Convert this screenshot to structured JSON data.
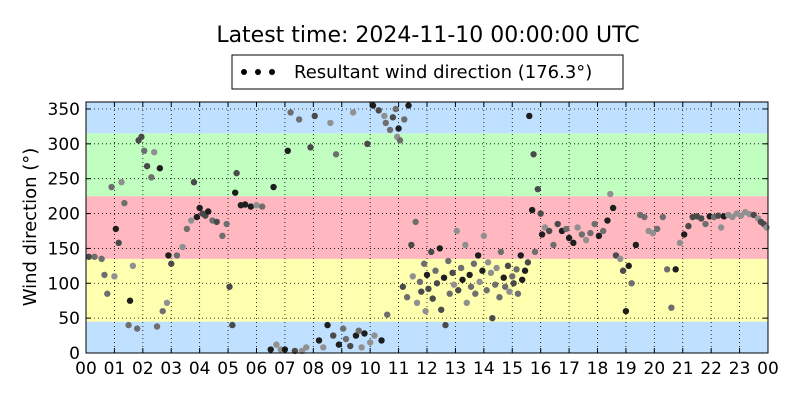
{
  "chart_data": {
    "type": "scatter",
    "title": "Latest time: 2024-11-10 00:00:00 UTC",
    "xlabel": "",
    "ylabel": "Wind direction (°)",
    "x_unit": "hour",
    "xlim": [
      0,
      24
    ],
    "ylim": [
      0,
      360
    ],
    "x_ticks": [
      0,
      1,
      2,
      3,
      4,
      5,
      6,
      7,
      8,
      9,
      10,
      11,
      12,
      13,
      14,
      15,
      16,
      17,
      18,
      19,
      20,
      21,
      22,
      23,
      24
    ],
    "x_tick_labels": [
      "00",
      "01",
      "02",
      "03",
      "04",
      "05",
      "06",
      "07",
      "08",
      "09",
      "10",
      "11",
      "12",
      "13",
      "14",
      "15",
      "16",
      "17",
      "18",
      "19",
      "20",
      "21",
      "22",
      "23",
      "00"
    ],
    "y_ticks": [
      0,
      50,
      100,
      150,
      200,
      250,
      300,
      350
    ],
    "grid": true,
    "grid_style": "dotted",
    "legend": {
      "placement": "top-center",
      "entries": [
        {
          "label": "Resultant wind direction (176.3°)",
          "marker": "dots",
          "color": "#000000"
        }
      ]
    },
    "bands": [
      {
        "from": 0,
        "to": 45,
        "color": "#c0e0ff"
      },
      {
        "from": 45,
        "to": 135,
        "color": "#ffffb0"
      },
      {
        "from": 135,
        "to": 225,
        "color": "#ffb8c0"
      },
      {
        "from": 225,
        "to": 315,
        "color": "#c0ffc0"
      },
      {
        "from": 315,
        "to": 360,
        "color": "#c0e0ff"
      }
    ],
    "point_colors": [
      "#909090",
      "#6e6e6e",
      "#4a4a4a",
      "#1e1e1e"
    ],
    "series": [
      {
        "points": [
          {
            "x": 0.1,
            "y": 138
          },
          {
            "x": 0.3,
            "y": 138
          },
          {
            "x": 0.55,
            "y": 135
          },
          {
            "x": 0.65,
            "y": 112
          },
          {
            "x": 0.75,
            "y": 85
          },
          {
            "x": 0.9,
            "y": 238
          },
          {
            "x": 1.0,
            "y": 110
          },
          {
            "x": 1.05,
            "y": 178
          },
          {
            "x": 1.15,
            "y": 158
          },
          {
            "x": 1.25,
            "y": 245
          },
          {
            "x": 1.35,
            "y": 215
          },
          {
            "x": 1.5,
            "y": 40
          },
          {
            "x": 1.55,
            "y": 75
          },
          {
            "x": 1.65,
            "y": 125
          },
          {
            "x": 1.8,
            "y": 35
          },
          {
            "x": 1.85,
            "y": 305
          },
          {
            "x": 1.95,
            "y": 310
          },
          {
            "x": 2.05,
            "y": 290
          },
          {
            "x": 2.15,
            "y": 268
          },
          {
            "x": 2.3,
            "y": 252
          },
          {
            "x": 2.4,
            "y": 288
          },
          {
            "x": 2.5,
            "y": 38
          },
          {
            "x": 2.6,
            "y": 265
          },
          {
            "x": 2.7,
            "y": 60
          },
          {
            "x": 2.85,
            "y": 72
          },
          {
            "x": 2.9,
            "y": 140
          },
          {
            "x": 3.0,
            "y": 128
          },
          {
            "x": 3.2,
            "y": 140
          },
          {
            "x": 3.4,
            "y": 152
          },
          {
            "x": 3.55,
            "y": 178
          },
          {
            "x": 3.7,
            "y": 190
          },
          {
            "x": 3.8,
            "y": 245
          },
          {
            "x": 3.9,
            "y": 195
          },
          {
            "x": 4.0,
            "y": 208
          },
          {
            "x": 4.1,
            "y": 200
          },
          {
            "x": 4.2,
            "y": 197
          },
          {
            "x": 4.3,
            "y": 203
          },
          {
            "x": 4.45,
            "y": 190
          },
          {
            "x": 4.6,
            "y": 188
          },
          {
            "x": 4.8,
            "y": 168
          },
          {
            "x": 4.95,
            "y": 185
          },
          {
            "x": 5.05,
            "y": 95
          },
          {
            "x": 5.15,
            "y": 40
          },
          {
            "x": 5.25,
            "y": 230
          },
          {
            "x": 5.3,
            "y": 258
          },
          {
            "x": 5.45,
            "y": 212
          },
          {
            "x": 5.6,
            "y": 213
          },
          {
            "x": 5.8,
            "y": 210
          },
          {
            "x": 6.0,
            "y": 212
          },
          {
            "x": 6.2,
            "y": 210
          },
          {
            "x": 6.5,
            "y": 5
          },
          {
            "x": 6.6,
            "y": 238
          },
          {
            "x": 6.7,
            "y": 12
          },
          {
            "x": 6.85,
            "y": 5
          },
          {
            "x": 7.0,
            "y": 5
          },
          {
            "x": 7.1,
            "y": 290
          },
          {
            "x": 7.2,
            "y": 345
          },
          {
            "x": 7.35,
            "y": 3
          },
          {
            "x": 7.5,
            "y": 335
          },
          {
            "x": 7.6,
            "y": 3
          },
          {
            "x": 7.75,
            "y": 8
          },
          {
            "x": 7.9,
            "y": 295
          },
          {
            "x": 8.05,
            "y": 340
          },
          {
            "x": 8.2,
            "y": 18
          },
          {
            "x": 8.35,
            "y": 8
          },
          {
            "x": 8.5,
            "y": 40
          },
          {
            "x": 8.6,
            "y": 330
          },
          {
            "x": 8.7,
            "y": 25
          },
          {
            "x": 8.8,
            "y": 285
          },
          {
            "x": 8.9,
            "y": 12
          },
          {
            "x": 9.05,
            "y": 35
          },
          {
            "x": 9.15,
            "y": 20
          },
          {
            "x": 9.3,
            "y": 10
          },
          {
            "x": 9.4,
            "y": 345
          },
          {
            "x": 9.5,
            "y": 25
          },
          {
            "x": 9.6,
            "y": 32
          },
          {
            "x": 9.7,
            "y": 8
          },
          {
            "x": 9.8,
            "y": 28
          },
          {
            "x": 9.9,
            "y": 300
          },
          {
            "x": 10.0,
            "y": 15
          },
          {
            "x": 10.1,
            "y": 355
          },
          {
            "x": 10.15,
            "y": 25
          },
          {
            "x": 10.3,
            "y": 348
          },
          {
            "x": 10.4,
            "y": 18
          },
          {
            "x": 10.5,
            "y": 340
          },
          {
            "x": 10.55,
            "y": 330
          },
          {
            "x": 10.6,
            "y": 55
          },
          {
            "x": 10.7,
            "y": 320
          },
          {
            "x": 10.8,
            "y": 338
          },
          {
            "x": 10.9,
            "y": 350
          },
          {
            "x": 10.95,
            "y": 310
          },
          {
            "x": 11.0,
            "y": 322
          },
          {
            "x": 11.05,
            "y": 305
          },
          {
            "x": 11.15,
            "y": 95
          },
          {
            "x": 11.2,
            "y": 335
          },
          {
            "x": 11.3,
            "y": 80
          },
          {
            "x": 11.35,
            "y": 355
          },
          {
            "x": 11.45,
            "y": 155
          },
          {
            "x": 11.5,
            "y": 110
          },
          {
            "x": 11.6,
            "y": 188
          },
          {
            "x": 11.65,
            "y": 72
          },
          {
            "x": 11.75,
            "y": 102
          },
          {
            "x": 11.8,
            "y": 88
          },
          {
            "x": 11.9,
            "y": 128
          },
          {
            "x": 11.95,
            "y": 60
          },
          {
            "x": 12.0,
            "y": 112
          },
          {
            "x": 12.05,
            "y": 92
          },
          {
            "x": 12.15,
            "y": 145
          },
          {
            "x": 12.2,
            "y": 78
          },
          {
            "x": 12.3,
            "y": 118
          },
          {
            "x": 12.35,
            "y": 100
          },
          {
            "x": 12.45,
            "y": 150
          },
          {
            "x": 12.5,
            "y": 62
          },
          {
            "x": 12.6,
            "y": 108
          },
          {
            "x": 12.65,
            "y": 40
          },
          {
            "x": 12.75,
            "y": 132
          },
          {
            "x": 12.8,
            "y": 85
          },
          {
            "x": 12.9,
            "y": 115
          },
          {
            "x": 12.95,
            "y": 98
          },
          {
            "x": 13.05,
            "y": 175
          },
          {
            "x": 13.1,
            "y": 90
          },
          {
            "x": 13.2,
            "y": 122
          },
          {
            "x": 13.25,
            "y": 105
          },
          {
            "x": 13.35,
            "y": 155
          },
          {
            "x": 13.4,
            "y": 72
          },
          {
            "x": 13.5,
            "y": 112
          },
          {
            "x": 13.55,
            "y": 95
          },
          {
            "x": 13.65,
            "y": 128
          },
          {
            "x": 13.7,
            "y": 85
          },
          {
            "x": 13.8,
            "y": 140
          },
          {
            "x": 13.85,
            "y": 102
          },
          {
            "x": 13.95,
            "y": 118
          },
          {
            "x": 14.0,
            "y": 168
          },
          {
            "x": 14.1,
            "y": 90
          },
          {
            "x": 14.15,
            "y": 130
          },
          {
            "x": 14.25,
            "y": 115
          },
          {
            "x": 14.3,
            "y": 50
          },
          {
            "x": 14.4,
            "y": 98
          },
          {
            "x": 14.45,
            "y": 122
          },
          {
            "x": 14.55,
            "y": 80
          },
          {
            "x": 14.6,
            "y": 145
          },
          {
            "x": 14.7,
            "y": 108
          },
          {
            "x": 14.75,
            "y": 95
          },
          {
            "x": 14.85,
            "y": 125
          },
          {
            "x": 14.9,
            "y": 88
          },
          {
            "x": 15.0,
            "y": 110
          },
          {
            "x": 15.05,
            "y": 100
          },
          {
            "x": 15.15,
            "y": 120
          },
          {
            "x": 15.2,
            "y": 85
          },
          {
            "x": 15.3,
            "y": 140
          },
          {
            "x": 15.35,
            "y": 105
          },
          {
            "x": 15.45,
            "y": 118
          },
          {
            "x": 15.55,
            "y": 130
          },
          {
            "x": 15.6,
            "y": 340
          },
          {
            "x": 15.7,
            "y": 205
          },
          {
            "x": 15.75,
            "y": 285
          },
          {
            "x": 15.8,
            "y": 145
          },
          {
            "x": 15.9,
            "y": 235
          },
          {
            "x": 16.0,
            "y": 200
          },
          {
            "x": 16.05,
            "y": 170
          },
          {
            "x": 16.15,
            "y": 180
          },
          {
            "x": 16.3,
            "y": 175
          },
          {
            "x": 16.45,
            "y": 155
          },
          {
            "x": 16.6,
            "y": 185
          },
          {
            "x": 16.75,
            "y": 175
          },
          {
            "x": 16.9,
            "y": 178
          },
          {
            "x": 17.0,
            "y": 165
          },
          {
            "x": 17.15,
            "y": 158
          },
          {
            "x": 17.3,
            "y": 180
          },
          {
            "x": 17.45,
            "y": 170
          },
          {
            "x": 17.6,
            "y": 162
          },
          {
            "x": 17.75,
            "y": 172
          },
          {
            "x": 17.9,
            "y": 185
          },
          {
            "x": 18.05,
            "y": 168
          },
          {
            "x": 18.2,
            "y": 175
          },
          {
            "x": 18.35,
            "y": 190
          },
          {
            "x": 18.45,
            "y": 228
          },
          {
            "x": 18.55,
            "y": 208
          },
          {
            "x": 18.65,
            "y": 140
          },
          {
            "x": 18.8,
            "y": 135
          },
          {
            "x": 18.9,
            "y": 118
          },
          {
            "x": 19.0,
            "y": 60
          },
          {
            "x": 19.1,
            "y": 125
          },
          {
            "x": 19.2,
            "y": 100
          },
          {
            "x": 19.35,
            "y": 155
          },
          {
            "x": 19.5,
            "y": 198
          },
          {
            "x": 19.65,
            "y": 195
          },
          {
            "x": 19.8,
            "y": 175
          },
          {
            "x": 19.95,
            "y": 172
          },
          {
            "x": 20.1,
            "y": 178
          },
          {
            "x": 20.3,
            "y": 195
          },
          {
            "x": 20.45,
            "y": 120
          },
          {
            "x": 20.6,
            "y": 65
          },
          {
            "x": 20.75,
            "y": 120
          },
          {
            "x": 20.9,
            "y": 158
          },
          {
            "x": 21.05,
            "y": 170
          },
          {
            "x": 21.2,
            "y": 182
          },
          {
            "x": 21.35,
            "y": 195
          },
          {
            "x": 21.5,
            "y": 196
          },
          {
            "x": 21.65,
            "y": 193
          },
          {
            "x": 21.8,
            "y": 185
          },
          {
            "x": 21.95,
            "y": 196
          },
          {
            "x": 22.1,
            "y": 195
          },
          {
            "x": 22.25,
            "y": 197
          },
          {
            "x": 22.35,
            "y": 180
          },
          {
            "x": 22.45,
            "y": 196
          },
          {
            "x": 22.6,
            "y": 198
          },
          {
            "x": 22.75,
            "y": 195
          },
          {
            "x": 22.9,
            "y": 200
          },
          {
            "x": 23.05,
            "y": 197
          },
          {
            "x": 23.2,
            "y": 202
          },
          {
            "x": 23.35,
            "y": 199
          },
          {
            "x": 23.5,
            "y": 198
          },
          {
            "x": 23.65,
            "y": 193
          },
          {
            "x": 23.75,
            "y": 188
          },
          {
            "x": 23.85,
            "y": 185
          },
          {
            "x": 23.95,
            "y": 180
          }
        ]
      }
    ]
  }
}
